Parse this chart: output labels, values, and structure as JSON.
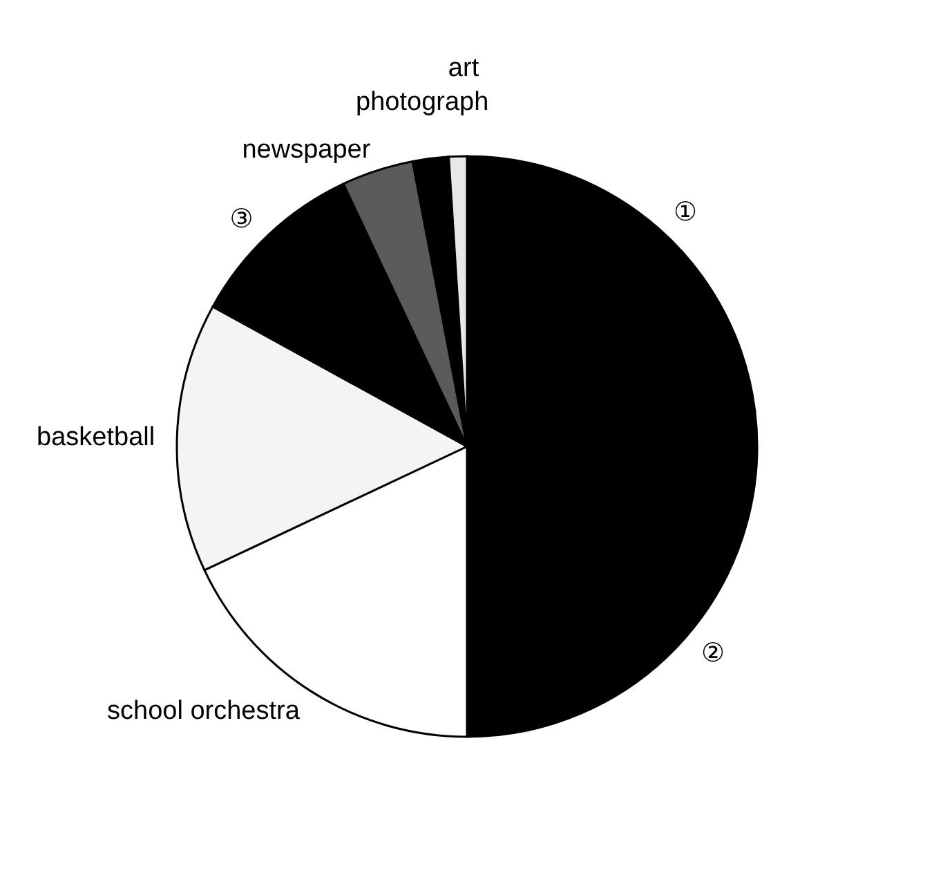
{
  "chart_data": {
    "type": "pie",
    "categories": [
      "①",
      "②",
      "school orchestra",
      "basketball",
      "③",
      "newspaper",
      "photograph",
      "art"
    ],
    "values": [
      23,
      27,
      18,
      15,
      10,
      4,
      2,
      1
    ],
    "colors": [
      "#000000",
      "#000000",
      "#ffffff",
      "#f4f4f4",
      "#000000",
      "#5a5a5a",
      "#000000",
      "#e8e8e8"
    ]
  }
}
